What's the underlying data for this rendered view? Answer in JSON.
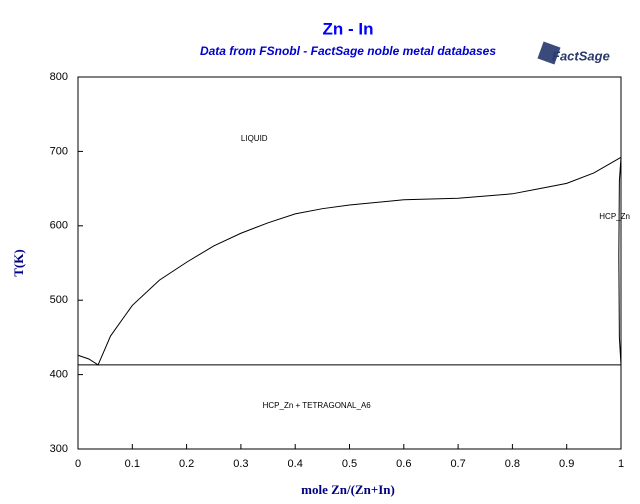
{
  "logo": "FactSage",
  "chart_data": {
    "type": "line",
    "title": "Zn - In",
    "subtitle": "Data from FSnobl - FactSage noble metal databases",
    "xlabel": "mole Zn/(Zn+In)",
    "ylabel": "T(K)",
    "xlim": [
      0,
      1
    ],
    "ylim": [
      300,
      800
    ],
    "xticks": [
      0,
      0.1,
      0.2,
      0.3,
      0.4,
      0.5,
      0.6,
      0.7,
      0.8,
      0.9,
      1
    ],
    "yticks": [
      300,
      400,
      500,
      600,
      700,
      800
    ],
    "color": "#000000",
    "series": [
      {
        "x": [
          0,
          0.02,
          0.037,
          0.06,
          0.1,
          0.15,
          0.2,
          0.25,
          0.3,
          0.35,
          0.4,
          0.45,
          0.5,
          0.6,
          0.7,
          0.8,
          0.85,
          0.9,
          0.95,
          1
        ],
        "values": [
          426,
          421,
          413,
          452,
          493,
          527,
          551,
          573,
          590,
          604,
          616,
          623,
          628,
          635,
          637,
          643,
          650,
          657,
          671,
          692
        ]
      },
      {
        "x": [
          0,
          1
        ],
        "values": [
          413,
          413
        ]
      },
      {
        "x": [
          1,
          0.997,
          0.996,
          0.997,
          1
        ],
        "values": [
          692,
          660,
          560,
          450,
          413
        ]
      }
    ],
    "annotations": [
      {
        "text": "LIQUID",
        "x": 0.3,
        "y": 717
      },
      {
        "text": "HCP_Zn",
        "x": 0.96,
        "y": 612
      },
      {
        "text": "HCP_Zn + TETRAGONAL_A6",
        "x": 0.34,
        "y": 358
      }
    ]
  }
}
